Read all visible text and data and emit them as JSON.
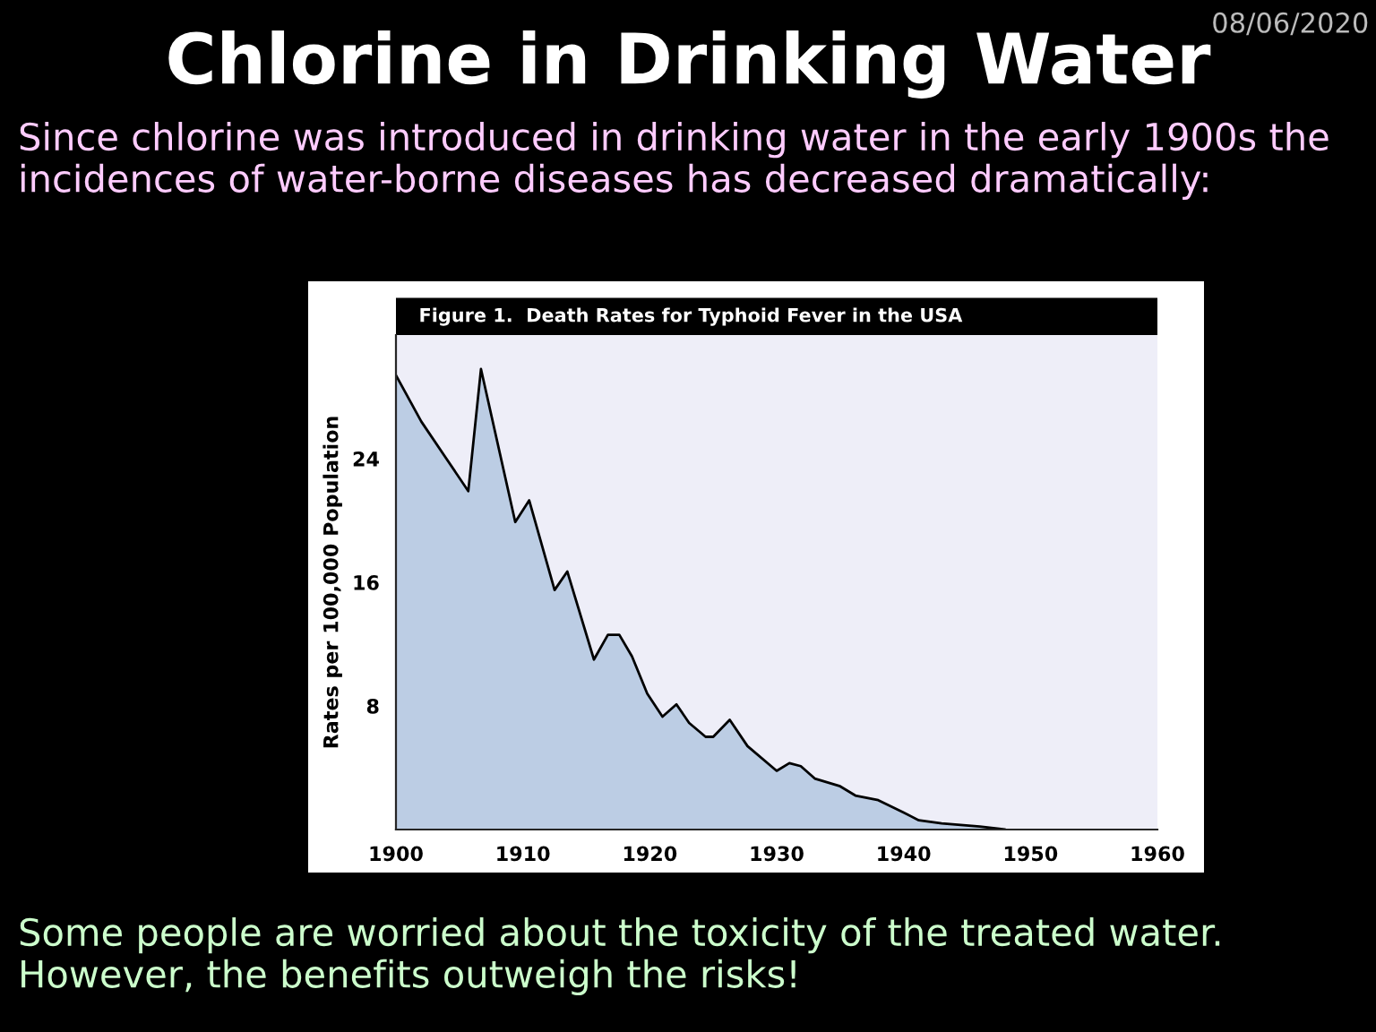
{
  "chart_data": {
    "type": "area",
    "title": "Chlorine in Drinking Water",
    "subtitle": "Figure 1.  Death Rates for Typhoid Fever in the USA",
    "ylabel": "Rates per 100,000 Population",
    "annotations": [
      "08/06/2020",
      "Since chlorine was introduced in drinking water in the early 1900s the incidences of water-borne diseases has decreased dramatically:",
      "Some people are worried about the toxicity of the treated water.  However, the benefits outweigh the risks!"
    ],
    "x": [
      1900,
      1902,
      1905.7,
      1906.7,
      1909.4,
      1910.5,
      1912.5,
      1913.5,
      1915.6,
      1916.7,
      1917.6,
      1918.6,
      1919.8,
      1921,
      1922.1,
      1923.1,
      1924.4,
      1925,
      1926.3,
      1927.7,
      1930,
      1931,
      1931.9,
      1933,
      1935,
      1936.2,
      1938,
      1940,
      1941.2,
      1943,
      1946,
      1948
    ],
    "series": [
      {
        "color": "#bccde4",
        "values": [
          29.4,
          26.4,
          21.9,
          29.8,
          19.9,
          21.3,
          15.5,
          16.7,
          11.0,
          12.6,
          12.6,
          11.2,
          8.8,
          7.3,
          8.1,
          6.9,
          6.0,
          6.0,
          7.1,
          5.4,
          3.8,
          4.3,
          4.1,
          3.3,
          2.8,
          2.2,
          1.9,
          1.1,
          0.6,
          0.4,
          0.2,
          0.0
        ]
      }
    ],
    "xlim": [
      1900,
      1960
    ],
    "xticks": [
      1900,
      1910,
      1920,
      1930,
      1940,
      1950,
      1960
    ],
    "ylim": [
      0,
      32
    ],
    "yticks": [
      8,
      16,
      24
    ],
    "grid": false
  }
}
